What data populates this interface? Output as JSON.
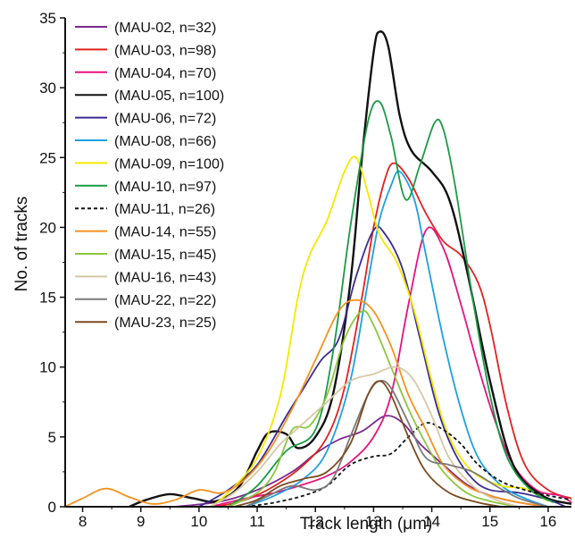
{
  "chart_data": {
    "type": "line",
    "title": "",
    "xlabel": "Track length (μm)",
    "ylabel": "No. of tracks",
    "xlim": [
      7.7,
      16.4
    ],
    "ylim": [
      0,
      35
    ],
    "xticks": [
      "8",
      "9",
      "10",
      "11",
      "12",
      "13",
      "14",
      "15",
      "16"
    ],
    "yticks": [
      "0",
      "5",
      "10",
      "15",
      "20",
      "25",
      "30",
      "35"
    ],
    "legend_position": "top-left",
    "grid": false,
    "series": [
      {
        "name": "(MAU-02, n=32)",
        "color": "#7b2a8e",
        "dash": false,
        "points": [
          [
            9.6,
            0
          ],
          [
            10.4,
            0.4
          ],
          [
            11.0,
            1.2
          ],
          [
            11.6,
            2.5
          ],
          [
            12.0,
            3.8
          ],
          [
            12.4,
            4.8
          ],
          [
            12.8,
            5.4
          ],
          [
            13.2,
            6.5
          ],
          [
            13.5,
            6.0
          ],
          [
            13.8,
            4.5
          ],
          [
            14.2,
            3.0
          ],
          [
            14.6,
            1.6
          ],
          [
            15.0,
            0.8
          ],
          [
            15.5,
            0.3
          ],
          [
            16.0,
            0
          ]
        ]
      },
      {
        "name": "(MAU-03, n=98)",
        "color": "#e0221f",
        "dash": false,
        "points": [
          [
            10.3,
            0
          ],
          [
            10.8,
            0.5
          ],
          [
            11.3,
            1.5
          ],
          [
            11.8,
            3.0
          ],
          [
            12.2,
            5.0
          ],
          [
            12.5,
            8.5
          ],
          [
            12.8,
            15.0
          ],
          [
            13.0,
            20.0
          ],
          [
            13.2,
            23.5
          ],
          [
            13.35,
            24.6
          ],
          [
            13.6,
            23.5
          ],
          [
            13.9,
            21.0
          ],
          [
            14.2,
            19.0
          ],
          [
            14.5,
            18.0
          ],
          [
            14.8,
            16.0
          ],
          [
            15.0,
            13.0
          ],
          [
            15.3,
            7.0
          ],
          [
            15.6,
            3.0
          ],
          [
            16.0,
            1.2
          ],
          [
            16.4,
            0.6
          ]
        ]
      },
      {
        "name": "(MAU-04, n=70)",
        "color": "#e6137e",
        "dash": false,
        "points": [
          [
            10.2,
            0
          ],
          [
            10.8,
            0.6
          ],
          [
            11.3,
            1.0
          ],
          [
            11.8,
            1.6
          ],
          [
            12.2,
            2.2
          ],
          [
            12.6,
            3.2
          ],
          [
            13.0,
            5.0
          ],
          [
            13.3,
            8.0
          ],
          [
            13.6,
            14.5
          ],
          [
            13.9,
            19.8
          ],
          [
            14.2,
            18.5
          ],
          [
            14.5,
            14.5
          ],
          [
            14.8,
            10.0
          ],
          [
            15.1,
            6.0
          ],
          [
            15.4,
            3.0
          ],
          [
            15.8,
            1.2
          ],
          [
            16.2,
            0.8
          ],
          [
            16.4,
            0.3
          ]
        ]
      },
      {
        "name": "(MAU-05, n=100)",
        "color": "#111111",
        "dash": false,
        "points": [
          [
            8.8,
            0
          ],
          [
            9.1,
            0.5
          ],
          [
            9.5,
            0.9
          ],
          [
            9.9,
            0.6
          ],
          [
            10.3,
            0.4
          ],
          [
            10.7,
            1.5
          ],
          [
            11.0,
            4.0
          ],
          [
            11.2,
            5.3
          ],
          [
            11.5,
            5.2
          ],
          [
            11.7,
            4.2
          ],
          [
            12.0,
            5.0
          ],
          [
            12.3,
            8.0
          ],
          [
            12.6,
            16.0
          ],
          [
            12.8,
            25.0
          ],
          [
            13.0,
            32.5
          ],
          [
            13.1,
            34.0
          ],
          [
            13.25,
            33.0
          ],
          [
            13.45,
            28.0
          ],
          [
            13.65,
            25.5
          ],
          [
            14.0,
            24.0
          ],
          [
            14.3,
            22.0
          ],
          [
            14.6,
            17.0
          ],
          [
            15.0,
            9.0
          ],
          [
            15.4,
            3.0
          ],
          [
            15.9,
            0.8
          ],
          [
            16.4,
            0.2
          ]
        ]
      },
      {
        "name": "(MAU-06, n=72)",
        "color": "#3b2c8f",
        "dash": false,
        "points": [
          [
            10.0,
            0
          ],
          [
            10.5,
            1.2
          ],
          [
            11.0,
            3.0
          ],
          [
            11.5,
            6.5
          ],
          [
            11.8,
            8.5
          ],
          [
            12.1,
            10.5
          ],
          [
            12.4,
            12.0
          ],
          [
            12.7,
            16.5
          ],
          [
            13.0,
            19.8
          ],
          [
            13.2,
            19.5
          ],
          [
            13.5,
            17.0
          ],
          [
            13.8,
            12.0
          ],
          [
            14.1,
            7.0
          ],
          [
            14.4,
            3.8
          ],
          [
            14.7,
            2.0
          ],
          [
            15.0,
            1.2
          ],
          [
            15.5,
            1.0
          ],
          [
            16.0,
            0.5
          ],
          [
            16.3,
            0
          ]
        ]
      },
      {
        "name": "(MAU-08, n=66)",
        "color": "#1ea0e0",
        "dash": false,
        "points": [
          [
            10.8,
            0
          ],
          [
            11.3,
            0.8
          ],
          [
            11.8,
            2.0
          ],
          [
            12.2,
            4.0
          ],
          [
            12.6,
            9.0
          ],
          [
            12.9,
            16.0
          ],
          [
            13.1,
            20.5
          ],
          [
            13.3,
            23.0
          ],
          [
            13.45,
            24.0
          ],
          [
            13.7,
            22.0
          ],
          [
            13.9,
            18.0
          ],
          [
            14.2,
            12.0
          ],
          [
            14.5,
            7.0
          ],
          [
            14.8,
            3.5
          ],
          [
            15.2,
            1.5
          ],
          [
            15.6,
            0.6
          ],
          [
            16.0,
            0
          ]
        ]
      },
      {
        "name": "(MAU-09, n=100)",
        "color": "#f5e800",
        "dash": false,
        "points": [
          [
            10.2,
            0
          ],
          [
            10.5,
            1.0
          ],
          [
            11.0,
            3.5
          ],
          [
            11.4,
            8.0
          ],
          [
            11.7,
            15.0
          ],
          [
            11.9,
            18.0
          ],
          [
            12.2,
            20.5
          ],
          [
            12.5,
            24.0
          ],
          [
            12.7,
            25.0
          ],
          [
            12.9,
            22.5
          ],
          [
            13.1,
            19.5
          ],
          [
            13.4,
            17.5
          ],
          [
            13.7,
            14.0
          ],
          [
            14.0,
            9.0
          ],
          [
            14.3,
            5.0
          ],
          [
            14.7,
            2.5
          ],
          [
            15.2,
            1.5
          ],
          [
            15.6,
            1.3
          ],
          [
            16.0,
            0.4
          ]
        ]
      },
      {
        "name": "(MAU-10, n=97)",
        "color": "#1a9a44",
        "dash": false,
        "points": [
          [
            10.5,
            0
          ],
          [
            11.0,
            1.5
          ],
          [
            11.5,
            4.0
          ],
          [
            12.0,
            5.5
          ],
          [
            12.3,
            11.0
          ],
          [
            12.6,
            20.0
          ],
          [
            12.9,
            27.5
          ],
          [
            13.1,
            29.0
          ],
          [
            13.3,
            26.5
          ],
          [
            13.55,
            22.0
          ],
          [
            13.8,
            24.5
          ],
          [
            14.05,
            27.5
          ],
          [
            14.2,
            27.0
          ],
          [
            14.4,
            23.0
          ],
          [
            14.7,
            15.0
          ],
          [
            15.0,
            8.0
          ],
          [
            15.3,
            3.5
          ],
          [
            15.7,
            1.2
          ],
          [
            16.1,
            0.3
          ]
        ]
      },
      {
        "name": "(MAU-11, n=26)",
        "color": "#111111",
        "dash": true,
        "points": [
          [
            10.8,
            0
          ],
          [
            11.3,
            0.3
          ],
          [
            11.8,
            0.8
          ],
          [
            12.2,
            1.5
          ],
          [
            12.6,
            3.0
          ],
          [
            13.0,
            3.6
          ],
          [
            13.3,
            3.8
          ],
          [
            13.6,
            5.0
          ],
          [
            13.9,
            6.0
          ],
          [
            14.2,
            5.5
          ],
          [
            14.5,
            4.5
          ],
          [
            14.8,
            3.0
          ],
          [
            15.2,
            1.8
          ],
          [
            15.6,
            1.2
          ],
          [
            16.0,
            0.8
          ],
          [
            16.4,
            0.5
          ]
        ]
      },
      {
        "name": "(MAU-14, n=55)",
        "color": "#f39322",
        "dash": false,
        "points": [
          [
            7.7,
            0
          ],
          [
            8.0,
            0.6
          ],
          [
            8.4,
            1.3
          ],
          [
            8.8,
            0.7
          ],
          [
            9.2,
            0.2
          ],
          [
            9.6,
            0.5
          ],
          [
            10.0,
            1.2
          ],
          [
            10.4,
            1.0
          ],
          [
            10.8,
            2.0
          ],
          [
            11.2,
            4.0
          ],
          [
            11.6,
            7.0
          ],
          [
            12.0,
            10.5
          ],
          [
            12.4,
            14.0
          ],
          [
            12.7,
            14.8
          ],
          [
            13.0,
            14.0
          ],
          [
            13.3,
            11.5
          ],
          [
            13.6,
            8.0
          ],
          [
            13.9,
            5.5
          ],
          [
            14.2,
            3.0
          ],
          [
            14.6,
            1.5
          ],
          [
            15.0,
            0.8
          ],
          [
            15.5,
            0.3
          ],
          [
            16.0,
            0
          ]
        ]
      },
      {
        "name": "(MAU-15, n=45)",
        "color": "#8cc63f",
        "dash": false,
        "points": [
          [
            10.5,
            0
          ],
          [
            11.0,
            1.0
          ],
          [
            11.3,
            2.5
          ],
          [
            11.6,
            5.5
          ],
          [
            11.9,
            5.8
          ],
          [
            12.2,
            8.0
          ],
          [
            12.5,
            12.0
          ],
          [
            12.8,
            14.0
          ],
          [
            13.0,
            13.0
          ],
          [
            13.3,
            10.0
          ],
          [
            13.6,
            7.0
          ],
          [
            13.9,
            4.5
          ],
          [
            14.2,
            2.5
          ],
          [
            14.6,
            1.0
          ],
          [
            15.0,
            0.4
          ],
          [
            15.5,
            0
          ]
        ]
      },
      {
        "name": "(MAU-16, n=43)",
        "color": "#d6c8a6",
        "dash": false,
        "points": [
          [
            10.2,
            0
          ],
          [
            10.6,
            1.0
          ],
          [
            11.0,
            2.5
          ],
          [
            11.4,
            4.5
          ],
          [
            11.8,
            6.0
          ],
          [
            12.2,
            7.5
          ],
          [
            12.6,
            9.0
          ],
          [
            13.0,
            9.5
          ],
          [
            13.4,
            10.0
          ],
          [
            13.7,
            9.0
          ],
          [
            14.0,
            6.5
          ],
          [
            14.3,
            3.5
          ],
          [
            14.7,
            1.5
          ],
          [
            15.1,
            0.5
          ],
          [
            15.5,
            0
          ]
        ]
      },
      {
        "name": "(MAU-22, n=22)",
        "color": "#7a7a7a",
        "dash": false,
        "points": [
          [
            10.8,
            0
          ],
          [
            11.2,
            0.8
          ],
          [
            11.6,
            1.5
          ],
          [
            12.0,
            1.2
          ],
          [
            12.3,
            2.0
          ],
          [
            12.6,
            5.0
          ],
          [
            12.9,
            8.0
          ],
          [
            13.1,
            9.0
          ],
          [
            13.3,
            8.5
          ],
          [
            13.6,
            6.0
          ],
          [
            13.9,
            3.5
          ],
          [
            14.3,
            3.0
          ],
          [
            14.7,
            2.5
          ],
          [
            15.1,
            1.5
          ],
          [
            15.5,
            0.6
          ],
          [
            16.0,
            0
          ]
        ]
      },
      {
        "name": "(MAU-23, n=25)",
        "color": "#7b4a20",
        "dash": false,
        "points": [
          [
            10.6,
            0
          ],
          [
            11.0,
            0.5
          ],
          [
            11.4,
            1.5
          ],
          [
            11.8,
            2.0
          ],
          [
            12.2,
            2.5
          ],
          [
            12.6,
            4.5
          ],
          [
            12.9,
            8.0
          ],
          [
            13.1,
            9.0
          ],
          [
            13.3,
            8.0
          ],
          [
            13.6,
            5.0
          ],
          [
            13.9,
            2.5
          ],
          [
            14.3,
            1.0
          ],
          [
            14.8,
            0.3
          ],
          [
            15.2,
            0
          ]
        ]
      }
    ]
  }
}
